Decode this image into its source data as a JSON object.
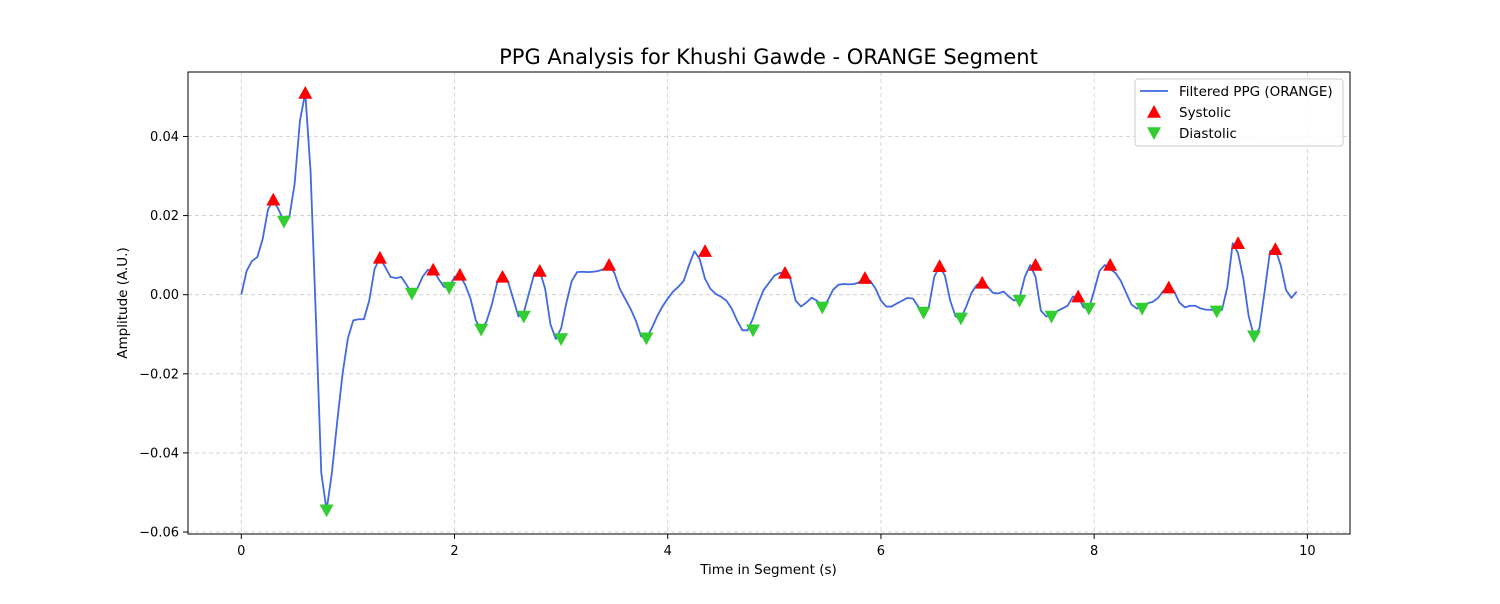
{
  "chart_data": {
    "type": "line",
    "title": "PPG Analysis for Khushi Gawde - ORANGE Segment",
    "xlabel": "Time in Segment (s)",
    "ylabel": "Amplitude (A.U.)",
    "xlim": [
      -0.5,
      10.4
    ],
    "ylim": [
      -0.0605,
      0.0563
    ],
    "x_ticks": [
      0,
      2,
      4,
      6,
      8,
      10
    ],
    "x_tick_labels": [
      "0",
      "2",
      "4",
      "6",
      "8",
      "10"
    ],
    "y_ticks": [
      -0.06,
      -0.04,
      -0.02,
      0.0,
      0.02,
      0.04
    ],
    "y_tick_labels": [
      "−0.06",
      "−0.04",
      "−0.02",
      "0.00",
      "0.02",
      "0.04"
    ],
    "grid": true,
    "legend_position": "top-right",
    "colors": {
      "line": "#4169e1",
      "systolic": "#ff0000",
      "diastolic": "#32cd32"
    },
    "series": [
      {
        "name": "Filtered PPG (ORANGE)",
        "kind": "line",
        "x": [
          0,
          0.05,
          0.1,
          0.15,
          0.2,
          0.25,
          0.3,
          0.35,
          0.4,
          0.45,
          0.5,
          0.55,
          0.6,
          0.65,
          0.7,
          0.75,
          0.8,
          0.85,
          0.9,
          0.95,
          1.0,
          1.05,
          1.1,
          1.15,
          1.2,
          1.25,
          1.3,
          1.35,
          1.4,
          1.45,
          1.5,
          1.55,
          1.6,
          1.65,
          1.7,
          1.75,
          1.8,
          1.85,
          1.9,
          1.95,
          2.0,
          2.05,
          2.1,
          2.15,
          2.2,
          2.25,
          2.3,
          2.35,
          2.4,
          2.45,
          2.5,
          2.55,
          2.6,
          2.65,
          2.7,
          2.75,
          2.8,
          2.85,
          2.9,
          2.95,
          3.0,
          3.05,
          3.1,
          3.15,
          3.2,
          3.25,
          3.3,
          3.35,
          3.4,
          3.45,
          3.5,
          3.55,
          3.6,
          3.65,
          3.7,
          3.75,
          3.8,
          3.85,
          3.9,
          3.95,
          4.0,
          4.05,
          4.1,
          4.15,
          4.2,
          4.25,
          4.3,
          4.35,
          4.4,
          4.45,
          4.5,
          4.55,
          4.6,
          4.65,
          4.7,
          4.75,
          4.8,
          4.85,
          4.9,
          4.95,
          5.0,
          5.05,
          5.1,
          5.15,
          5.2,
          5.25,
          5.3,
          5.35,
          5.4,
          5.45,
          5.5,
          5.55,
          5.6,
          5.65,
          5.7,
          5.75,
          5.8,
          5.85,
          5.9,
          5.95,
          6.0,
          6.05,
          6.1,
          6.15,
          6.2,
          6.25,
          6.3,
          6.35,
          6.4,
          6.45,
          6.5,
          6.55,
          6.6,
          6.65,
          6.7,
          6.75,
          6.8,
          6.85,
          6.9,
          6.95,
          7.0,
          7.05,
          7.1,
          7.15,
          7.2,
          7.25,
          7.3,
          7.35,
          7.4,
          7.45,
          7.5,
          7.55,
          7.6,
          7.65,
          7.7,
          7.75,
          7.8,
          7.85,
          7.9,
          7.95,
          8.0,
          8.05,
          8.1,
          8.15,
          8.2,
          8.25,
          8.3,
          8.35,
          8.4,
          8.45,
          8.5,
          8.55,
          8.6,
          8.65,
          8.7,
          8.75,
          8.8,
          8.85,
          8.9,
          8.95,
          9.0,
          9.05,
          9.1,
          9.15,
          9.2,
          9.25,
          9.3,
          9.35,
          9.4,
          9.45,
          9.5,
          9.55,
          9.6,
          9.65,
          9.7,
          9.75,
          9.8,
          9.85,
          9.9
        ],
        "y": [
          0.0,
          0.006,
          0.0085,
          0.0095,
          0.014,
          0.0215,
          0.024,
          0.0215,
          0.0185,
          0.0195,
          0.028,
          0.044,
          0.051,
          0.031,
          -0.006,
          -0.045,
          -0.0545,
          -0.045,
          -0.032,
          -0.02,
          -0.011,
          -0.0065,
          -0.0062,
          -0.0062,
          -0.0015,
          0.0065,
          0.0093,
          0.007,
          0.0045,
          0.0042,
          0.0045,
          0.0025,
          0.0003,
          0.0015,
          0.0045,
          0.0063,
          0.0063,
          0.004,
          0.002,
          0.0018,
          0.0045,
          0.005,
          0.0025,
          -0.001,
          -0.0065,
          -0.0088,
          -0.0068,
          -0.0025,
          0.003,
          0.0045,
          0.0035,
          -0.001,
          -0.0055,
          -0.0045,
          0.0005,
          0.0055,
          0.006,
          0.0015,
          -0.0075,
          -0.0112,
          -0.0085,
          -0.002,
          0.0035,
          0.0057,
          0.0058,
          0.0057,
          0.0058,
          0.006,
          0.0065,
          0.0075,
          0.0055,
          0.0015,
          -0.001,
          -0.0035,
          -0.0065,
          -0.0105,
          -0.011,
          -0.0085,
          -0.0055,
          -0.003,
          -0.001,
          0.0008,
          0.002,
          0.0035,
          0.0075,
          0.011,
          0.009,
          0.004,
          0.0015,
          0.0002,
          -0.0005,
          -0.0015,
          -0.0035,
          -0.0065,
          -0.009,
          -0.009,
          -0.006,
          -0.002,
          0.0012,
          0.003,
          0.0048,
          0.0055,
          0.0055,
          0.004,
          -0.0015,
          -0.003,
          -0.002,
          -0.0008,
          -0.0015,
          -0.0032,
          -0.0015,
          0.0012,
          0.0025,
          0.0027,
          0.0026,
          0.0027,
          0.0032,
          0.0042,
          0.0035,
          0.0015,
          -0.0015,
          -0.003,
          -0.003,
          -0.0022,
          -0.0015,
          -0.0008,
          -0.001,
          -0.003,
          -0.0045,
          -0.003,
          0.0045,
          0.0072,
          0.0048,
          -0.0015,
          -0.0055,
          -0.006,
          -0.003,
          0.0005,
          0.0025,
          0.003,
          0.002,
          0.0005,
          0.0003,
          0.0008,
          -0.0005,
          -0.0015,
          -0.0008,
          0.0045,
          0.0075,
          0.0045,
          -0.004,
          -0.0055,
          -0.0052,
          -0.0042,
          -0.0035,
          -0.0028,
          -0.0005,
          -0.0005,
          -0.0032,
          -0.0035,
          0.001,
          0.006,
          0.0075,
          0.0065,
          0.0055,
          0.0035,
          0.0005,
          -0.0025,
          -0.0035,
          -0.0032,
          -0.0022,
          -0.0018,
          -0.0008,
          0.001,
          0.0018,
          0.0008,
          -0.002,
          -0.0032,
          -0.0028,
          -0.0028,
          -0.0035,
          -0.0038,
          -0.0038,
          -0.0042,
          -0.0038,
          0.002,
          0.013,
          0.0105,
          0.004,
          -0.0055,
          -0.0105,
          -0.0085,
          0.001,
          0.011,
          0.0115,
          0.0075,
          0.0012,
          -0.0008,
          0.0008
        ]
      },
      {
        "name": "Systolic",
        "kind": "marker-up",
        "x": [
          0.3,
          0.6,
          1.3,
          1.8,
          2.05,
          2.45,
          2.8,
          3.45,
          4.35,
          5.1,
          5.85,
          6.55,
          6.95,
          7.45,
          7.85,
          8.15,
          8.7,
          9.35,
          9.7
        ],
        "y": [
          0.024,
          0.051,
          0.0093,
          0.0063,
          0.005,
          0.0045,
          0.006,
          0.0075,
          0.011,
          0.0055,
          0.0042,
          0.0072,
          0.003,
          0.0075,
          -0.0005,
          0.0075,
          0.0018,
          0.013,
          0.0115
        ]
      },
      {
        "name": "Diastolic",
        "kind": "marker-down",
        "x": [
          0.4,
          0.8,
          1.6,
          1.95,
          2.25,
          2.65,
          3.0,
          3.8,
          4.8,
          5.45,
          6.4,
          6.75,
          7.3,
          7.6,
          7.95,
          8.45,
          9.15,
          9.5
        ],
        "y": [
          0.0185,
          -0.0545,
          0.0003,
          0.0018,
          -0.0088,
          -0.0055,
          -0.0112,
          -0.011,
          -0.009,
          -0.0032,
          -0.0045,
          -0.006,
          -0.0015,
          -0.0055,
          -0.0035,
          -0.0035,
          -0.0042,
          -0.0105
        ]
      }
    ]
  }
}
